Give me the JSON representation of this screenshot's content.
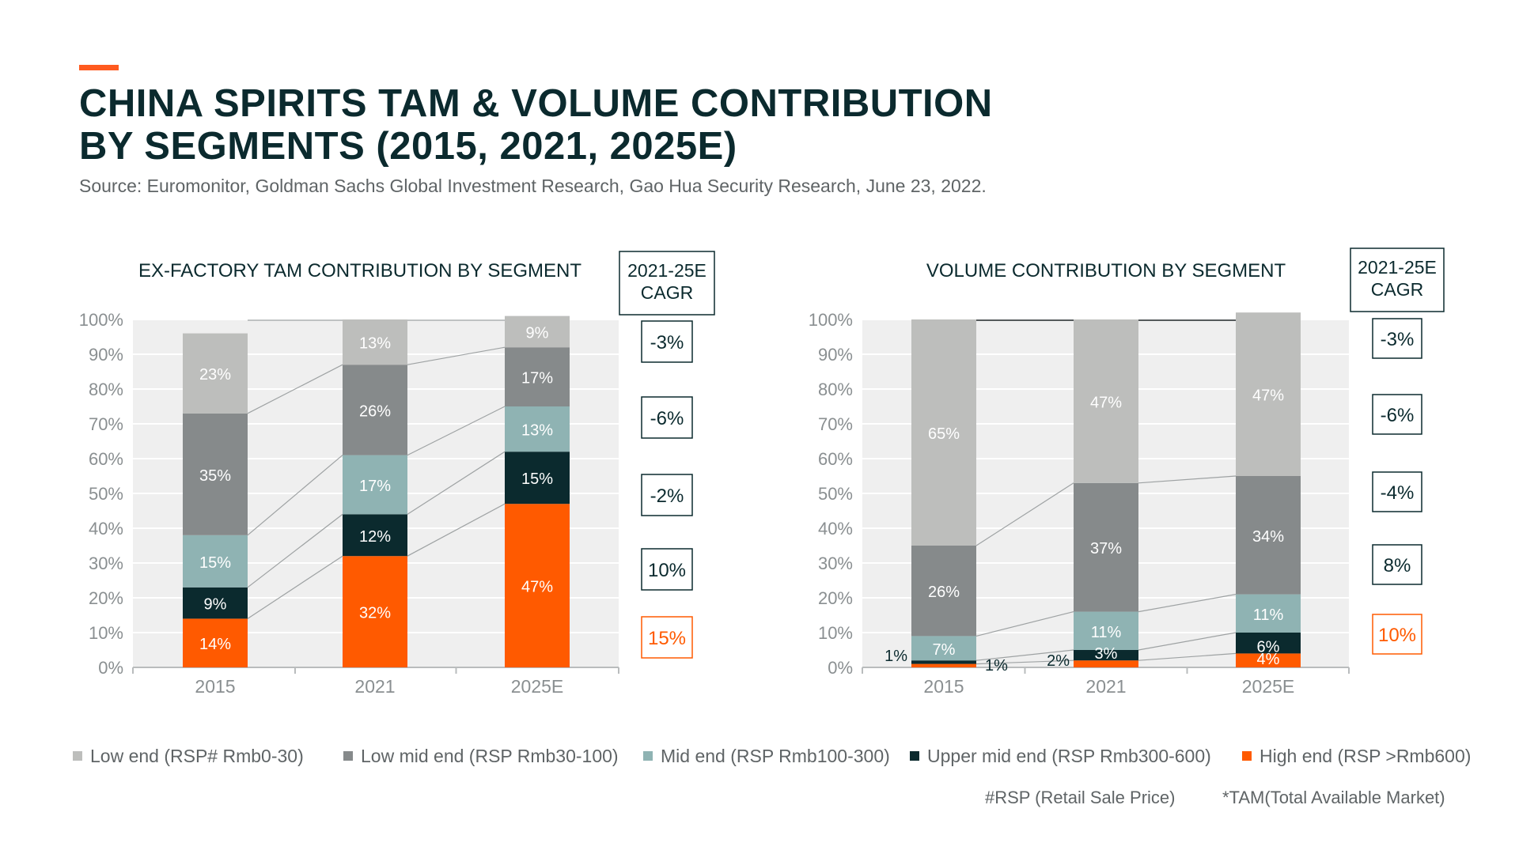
{
  "title_lines": [
    "CHINA SPIRITS TAM & VOLUME CONTRIBUTION",
    "BY SEGMENTS (2015, 2021, 2025E)"
  ],
  "source": "Source: Euromonitor, Goldman Sachs Global Investment Research, Gao Hua Security Research, June 23, 2022.",
  "colors": {
    "low_end": "#bdbebc",
    "low_mid_end": "#868a8b",
    "mid_end": "#8fb3b3",
    "upper_mid_end": "#0b2a2e",
    "high_end": "#ff5a00",
    "plot_bg": "#efefef",
    "accent": "#ff5a1f"
  },
  "legend": [
    {
      "label": "Low end (RSP# Rmb0-30)",
      "color": "#bdbebc"
    },
    {
      "label": "Low mid end (RSP Rmb30-100)",
      "color": "#868a8b"
    },
    {
      "label": "Mid end (RSP Rmb100-300)",
      "color": "#8fb3b3"
    },
    {
      "label": "Upper mid end (RSP Rmb300-600)",
      "color": "#0b2a2e"
    },
    {
      "label": "High end (RSP >Rmb600)",
      "color": "#ff5a00"
    }
  ],
  "footnotes": [
    "#RSP (Retail Sale Price)",
    "*TAM(Total Available Market)"
  ],
  "chart_data": [
    {
      "type": "bar",
      "stacked": true,
      "title": "EX-FACTORY TAM CONTRIBUTION BY SEGMENT",
      "categories": [
        "2015",
        "2021",
        "2025E"
      ],
      "ylim": [
        0,
        100
      ],
      "yticks": [
        "0%",
        "10%",
        "20%",
        "30%",
        "40%",
        "50%",
        "60%",
        "70%",
        "80%",
        "90%",
        "100%"
      ],
      "series": [
        {
          "name": "High end (RSP >Rmb600)",
          "values": [
            14,
            32,
            47
          ],
          "labels": [
            "14%",
            "32%",
            "47%"
          ]
        },
        {
          "name": "Upper mid end (RSP Rmb300-600)",
          "values": [
            9,
            12,
            15
          ],
          "labels": [
            "9%",
            "12%",
            "15%"
          ]
        },
        {
          "name": "Mid end (RSP Rmb100-300)",
          "values": [
            15,
            17,
            13
          ],
          "labels": [
            "15%",
            "17%",
            "13%"
          ]
        },
        {
          "name": "Low mid end (RSP Rmb30-100)",
          "values": [
            35,
            26,
            17
          ],
          "labels": [
            "35%",
            "26%",
            "17%"
          ]
        },
        {
          "name": "Low end (RSP# Rmb0-30)",
          "values": [
            23,
            13,
            9
          ],
          "labels": [
            "23%",
            "13%",
            "9%"
          ]
        }
      ],
      "cagr_title": [
        "2021-25E",
        "CAGR"
      ],
      "cagr": [
        "-3%",
        "-6%",
        "-2%",
        "10%",
        "15%"
      ]
    },
    {
      "type": "bar",
      "stacked": true,
      "title": "VOLUME CONTRIBUTION BY SEGMENT",
      "categories": [
        "2015",
        "2021",
        "2025E"
      ],
      "ylim": [
        0,
        100
      ],
      "yticks": [
        "0%",
        "10%",
        "20%",
        "30%",
        "40%",
        "50%",
        "60%",
        "70%",
        "80%",
        "90%",
        "100%"
      ],
      "series": [
        {
          "name": "High end (RSP >Rmb600)",
          "values": [
            1,
            2,
            4
          ],
          "labels": [
            "1%",
            "2%",
            "4%"
          ]
        },
        {
          "name": "Upper mid end (RSP Rmb300-600)",
          "values": [
            1,
            3,
            6
          ],
          "labels": [
            "1%",
            "3%",
            "6%"
          ]
        },
        {
          "name": "Mid end (RSP Rmb100-300)",
          "values": [
            7,
            11,
            11
          ],
          "labels": [
            "7%",
            "11%",
            "11%"
          ]
        },
        {
          "name": "Low mid end (RSP Rmb30-100)",
          "values": [
            26,
            37,
            34
          ],
          "labels": [
            "26%",
            "37%",
            "34%"
          ]
        },
        {
          "name": "Low end (RSP# Rmb0-30)",
          "values": [
            65,
            47,
            47
          ],
          "labels": [
            "65%",
            "47%",
            "47%"
          ]
        }
      ],
      "cagr_title": [
        "2021-25E",
        "CAGR"
      ],
      "cagr": [
        "-3%",
        "-6%",
        "-4%",
        "8%",
        "10%"
      ]
    }
  ]
}
